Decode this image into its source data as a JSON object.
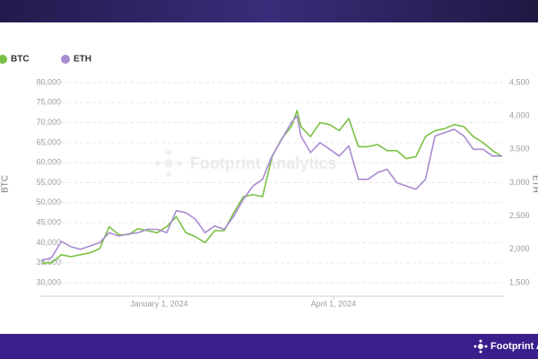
{
  "chart_data": {
    "type": "line",
    "watermark": "Footprint Analytics",
    "y_label": "BTC",
    "y2_label": "ETH",
    "legend": "top-left",
    "grid": true,
    "x": [
      "2023-11-01",
      "2023-11-06",
      "2023-11-11",
      "2023-11-16",
      "2023-11-21",
      "2023-11-26",
      "2023-12-01",
      "2023-12-06",
      "2023-12-11",
      "2023-12-16",
      "2023-12-21",
      "2023-12-26",
      "2023-12-31",
      "2024-01-05",
      "2024-01-10",
      "2024-01-15",
      "2024-01-20",
      "2024-01-25",
      "2024-01-30",
      "2024-02-04",
      "2024-02-09",
      "2024-02-14",
      "2024-02-19",
      "2024-02-24",
      "2024-02-29",
      "2024-03-05",
      "2024-03-10",
      "2024-03-13",
      "2024-03-15",
      "2024-03-20",
      "2024-03-25",
      "2024-03-30",
      "2024-04-04",
      "2024-04-09",
      "2024-04-14",
      "2024-04-19",
      "2024-04-24",
      "2024-04-29",
      "2024-05-04",
      "2024-05-09",
      "2024-05-14",
      "2024-05-19",
      "2024-05-24",
      "2024-05-29",
      "2024-06-03",
      "2024-06-08",
      "2024-06-13",
      "2024-06-18",
      "2024-06-23",
      "2024-06-28"
    ],
    "series": [
      {
        "name": "BTC",
        "color": "#7ac143",
        "values": [
          34900,
          35000,
          37000,
          36500,
          37000,
          37500,
          38500,
          44000,
          42000,
          42000,
          43500,
          43000,
          42500,
          44000,
          46500,
          42500,
          41500,
          40000,
          43000,
          43000,
          47500,
          51500,
          52000,
          51500,
          61500,
          66000,
          69000,
          73000,
          69000,
          66500,
          70000,
          69500,
          68000,
          71000,
          64000,
          64000,
          64500,
          63000,
          63000,
          61000,
          61500,
          66500,
          68000,
          68500,
          69500,
          69000,
          66500,
          65000,
          63000,
          61500
        ]
      },
      {
        "name": "ETH",
        "color": "#a98bd1",
        "axis": "y2",
        "values": [
          1830,
          1880,
          2120,
          2040,
          2000,
          2050,
          2100,
          2250,
          2200,
          2230,
          2250,
          2300,
          2300,
          2250,
          2580,
          2550,
          2450,
          2250,
          2350,
          2300,
          2500,
          2750,
          2950,
          3050,
          3400,
          3650,
          3900,
          4000,
          3700,
          3450,
          3600,
          3500,
          3400,
          3550,
          3050,
          3050,
          3150,
          3200,
          3000,
          2950,
          2900,
          3050,
          3700,
          3750,
          3800,
          3700,
          3500,
          3500,
          3400,
          3400
        ]
      }
    ],
    "xlim": [
      "2023-11-01",
      "2024-06-28"
    ],
    "xticks": [
      {
        "value": "2024-01-01",
        "label": "January 1, 2024"
      },
      {
        "value": "2024-04-01",
        "label": "April 1, 2024"
      }
    ],
    "ylim": [
      30000,
      80000
    ],
    "yticks": [
      {
        "value": 30000,
        "label": "30,000"
      },
      {
        "value": 35000,
        "label": "35,000"
      },
      {
        "value": 40000,
        "label": "40,000"
      },
      {
        "value": 45000,
        "label": "45,000"
      },
      {
        "value": 50000,
        "label": "50,000"
      },
      {
        "value": 55000,
        "label": "55,000"
      },
      {
        "value": 60000,
        "label": "60,000"
      },
      {
        "value": 65000,
        "label": "65,000"
      },
      {
        "value": 70000,
        "label": "70,000"
      },
      {
        "value": 75000,
        "label": "75,000"
      },
      {
        "value": 80000,
        "label": "80,000"
      }
    ],
    "y2lim": [
      1500,
      4500
    ],
    "y2ticks": [
      {
        "value": 1500,
        "label": "1,500"
      },
      {
        "value": 2000,
        "label": "2,000"
      },
      {
        "value": 2500,
        "label": "2,500"
      },
      {
        "value": 3000,
        "label": "3,000"
      },
      {
        "value": 3500,
        "label": "3,500"
      },
      {
        "value": 4000,
        "label": "4,000"
      },
      {
        "value": 4500,
        "label": "4,500"
      }
    ]
  },
  "footer": "Footprint Analytics"
}
